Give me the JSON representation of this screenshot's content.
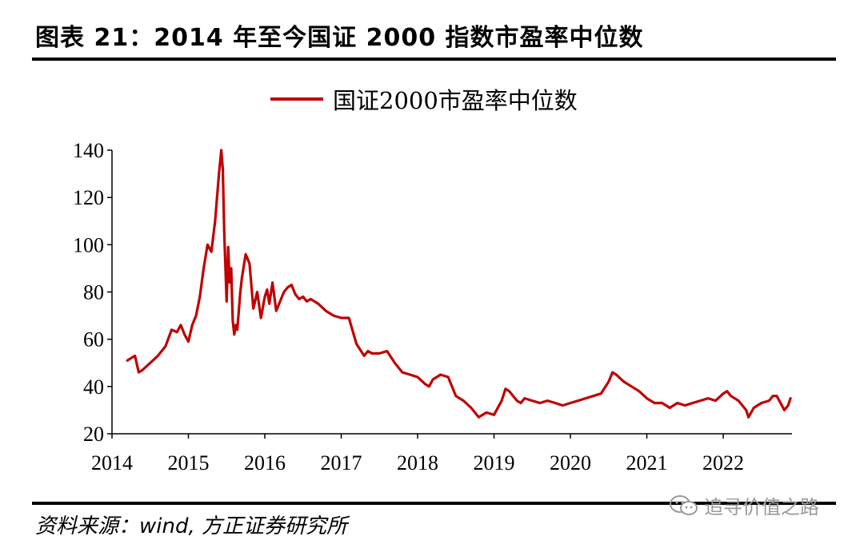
{
  "header": {
    "title": "图表 21：2014 年至今国证 2000 指数市盈率中位数"
  },
  "footer": {
    "source": "资料来源：wind, 方正证券研究所",
    "watermark": "追寻价值之路",
    "watermark_icon": "wechat-icon"
  },
  "colors": {
    "series": "#c00000",
    "axis": "#000000"
  },
  "chart_data": {
    "type": "line",
    "title": "",
    "xlabel": "",
    "ylabel": "",
    "ylim": [
      20,
      140
    ],
    "xlim": [
      2014,
      2022.9
    ],
    "y_ticks": [
      "20",
      "40",
      "60",
      "80",
      "100",
      "120",
      "140"
    ],
    "x_ticks": [
      "2014",
      "2015",
      "2016",
      "2017",
      "2018",
      "2019",
      "2020",
      "2021",
      "2022"
    ],
    "grid": false,
    "legend": "top-center",
    "series": [
      {
        "name": "国证2000市盈率中位数",
        "x": [
          2014.2,
          2014.25,
          2014.3,
          2014.35,
          2014.4,
          2014.5,
          2014.6,
          2014.7,
          2014.78,
          2014.85,
          2014.9,
          2014.95,
          2015.0,
          2015.05,
          2015.1,
          2015.15,
          2015.2,
          2015.25,
          2015.3,
          2015.35,
          2015.4,
          2015.43,
          2015.45,
          2015.47,
          2015.5,
          2015.52,
          2015.54,
          2015.56,
          2015.58,
          2015.6,
          2015.62,
          2015.64,
          2015.66,
          2015.68,
          2015.7,
          2015.72,
          2015.75,
          2015.8,
          2015.85,
          2015.9,
          2015.95,
          2016.0,
          2016.03,
          2016.06,
          2016.1,
          2016.15,
          2016.2,
          2016.25,
          2016.3,
          2016.35,
          2016.4,
          2016.45,
          2016.5,
          2016.55,
          2016.6,
          2016.7,
          2016.8,
          2016.9,
          2017.0,
          2017.1,
          2017.2,
          2017.3,
          2017.35,
          2017.4,
          2017.5,
          2017.6,
          2017.7,
          2017.8,
          2017.9,
          2018.0,
          2018.1,
          2018.15,
          2018.2,
          2018.3,
          2018.4,
          2018.5,
          2018.6,
          2018.7,
          2018.8,
          2018.9,
          2019.0,
          2019.1,
          2019.15,
          2019.2,
          2019.25,
          2019.3,
          2019.35,
          2019.4,
          2019.5,
          2019.6,
          2019.7,
          2019.8,
          2019.9,
          2020.0,
          2020.1,
          2020.2,
          2020.3,
          2020.4,
          2020.5,
          2020.55,
          2020.6,
          2020.7,
          2020.8,
          2020.9,
          2021.0,
          2021.1,
          2021.2,
          2021.3,
          2021.35,
          2021.4,
          2021.5,
          2021.6,
          2021.7,
          2021.8,
          2021.9,
          2022.0,
          2022.05,
          2022.1,
          2022.2,
          2022.3,
          2022.33,
          2022.4,
          2022.5,
          2022.6,
          2022.65,
          2022.7,
          2022.75,
          2022.8,
          2022.85,
          2022.88
        ],
        "values": [
          51,
          52,
          53,
          46,
          47,
          50,
          53,
          57,
          64,
          63,
          66,
          62,
          59,
          66,
          70,
          78,
          90,
          100,
          97,
          110,
          130,
          140,
          132,
          104,
          76,
          99,
          84,
          90,
          68,
          62,
          66,
          64,
          72,
          80,
          86,
          90,
          96,
          92,
          73,
          80,
          69,
          78,
          81,
          75,
          84,
          72,
          76,
          80,
          82,
          83,
          79,
          77,
          78,
          76,
          77,
          75,
          72,
          70,
          69,
          69,
          58,
          53,
          55,
          54,
          54,
          55,
          50,
          46,
          45,
          44,
          41,
          40,
          43,
          45,
          44,
          36,
          34,
          31,
          27,
          29,
          28,
          34,
          39,
          38,
          36,
          34,
          33,
          35,
          34,
          33,
          34,
          33,
          32,
          33,
          34,
          35,
          36,
          37,
          42,
          46,
          45,
          42,
          40,
          38,
          35,
          33,
          33,
          31,
          32,
          33,
          32,
          33,
          34,
          35,
          34,
          37,
          38,
          36,
          34,
          30,
          27,
          31,
          33,
          34,
          36,
          36,
          33,
          30,
          32,
          35
        ]
      }
    ]
  }
}
